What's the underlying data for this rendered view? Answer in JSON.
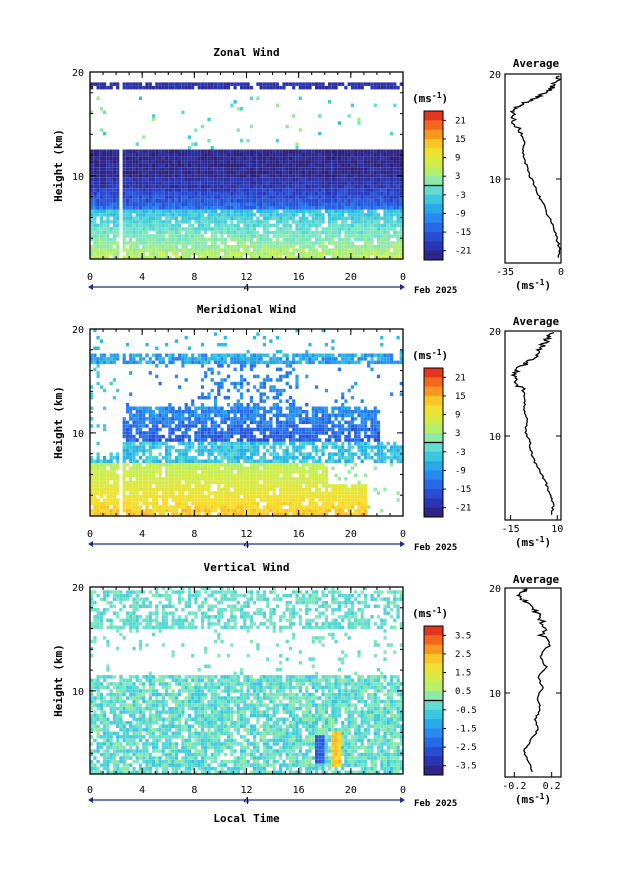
{
  "figure": {
    "xlabel": "Local Time",
    "date_label": "Feb 2025",
    "day_label": "4"
  },
  "chart_data": [
    {
      "type": "heatmap",
      "title": "Zonal Wind",
      "ylabel": "Height (km)",
      "unit_label": "(ms",
      "unit_sup": "-1",
      "x_ticks": [
        "0",
        "4",
        "8",
        "12",
        "16",
        "20",
        "0"
      ],
      "x_range": [
        0,
        24
      ],
      "y_ticks": [
        "20",
        "10"
      ],
      "y_range": [
        2,
        20
      ],
      "colorbar_ticks": [
        "21",
        "15",
        "9",
        "3",
        "-3",
        "-9",
        "-15",
        "-21"
      ],
      "colorbar_range": [
        -24,
        24
      ],
      "average": {
        "title": "Average",
        "x_ticks": [
          "-35",
          "0"
        ],
        "x_range": [
          -35,
          0
        ],
        "y_ticks": [
          "20",
          "10"
        ],
        "xlabel": "(ms",
        "xlabel_sup": "-1",
        "profile": [
          [
            -2,
            2.5
          ],
          [
            -1,
            3.5
          ],
          [
            -3,
            4.5
          ],
          [
            -5,
            5.5
          ],
          [
            -8,
            6.5
          ],
          [
            -11,
            7.5
          ],
          [
            -14,
            8.5
          ],
          [
            -17,
            9.5
          ],
          [
            -20,
            10.5
          ],
          [
            -22,
            11.5
          ],
          [
            -24,
            12.5
          ],
          [
            -23,
            13.5
          ],
          [
            -25,
            14.5
          ],
          [
            -28,
            15.0
          ],
          [
            -30,
            16.0
          ],
          [
            -31,
            16.5
          ],
          [
            -26,
            17.0
          ],
          [
            -20,
            17.5
          ],
          [
            -12,
            18.0
          ],
          [
            -6,
            18.6
          ],
          [
            -3,
            19.2
          ],
          [
            -1,
            19.8
          ]
        ]
      }
    },
    {
      "type": "heatmap",
      "title": "Meridional Wind",
      "ylabel": "Height (km)",
      "unit_label": "(ms",
      "unit_sup": "-1",
      "x_ticks": [
        "0",
        "4",
        "8",
        "12",
        "16",
        "20",
        "0"
      ],
      "x_range": [
        0,
        24
      ],
      "y_ticks": [
        "20",
        "10"
      ],
      "y_range": [
        2,
        20
      ],
      "colorbar_ticks": [
        "21",
        "15",
        "9",
        "3",
        "-3",
        "-9",
        "-15",
        "-21"
      ],
      "colorbar_range": [
        -24,
        24
      ],
      "average": {
        "title": "Average",
        "x_ticks": [
          "-15",
          "10"
        ],
        "x_range": [
          -18,
          12
        ],
        "y_ticks": [
          "20",
          "10"
        ],
        "xlabel": "(ms",
        "xlabel_sup": "-1",
        "profile": [
          [
            7,
            2.5
          ],
          [
            8,
            3.5
          ],
          [
            6,
            4.5
          ],
          [
            4,
            5.5
          ],
          [
            1,
            6.5
          ],
          [
            -2,
            7.5
          ],
          [
            -4,
            8.5
          ],
          [
            -5,
            9.5
          ],
          [
            -7,
            10.5
          ],
          [
            -6,
            11.5
          ],
          [
            -8,
            12.5
          ],
          [
            -7,
            13.5
          ],
          [
            -9,
            14.5
          ],
          [
            -12,
            15.0
          ],
          [
            -14,
            15.8
          ],
          [
            -10,
            16.5
          ],
          [
            -6,
            17.0
          ],
          [
            -2,
            17.6
          ],
          [
            0,
            18.2
          ],
          [
            3,
            18.8
          ],
          [
            5,
            19.4
          ],
          [
            8,
            19.9
          ]
        ]
      }
    },
    {
      "type": "heatmap",
      "title": "Vertical Wind",
      "ylabel": "Height (km)",
      "unit_label": "(ms",
      "unit_sup": "-1",
      "x_ticks": [
        "0",
        "4",
        "8",
        "12",
        "16",
        "20",
        "0"
      ],
      "x_range": [
        0,
        24
      ],
      "y_ticks": [
        "20",
        "10"
      ],
      "y_range": [
        2,
        20
      ],
      "colorbar_ticks": [
        "3.5",
        "2.5",
        "1.5",
        "0.5",
        "-0.5",
        "-1.5",
        "-2.5",
        "-3.5"
      ],
      "colorbar_range": [
        -4,
        4
      ],
      "average": {
        "title": "Average",
        "x_ticks": [
          "-0.2",
          "0.2"
        ],
        "x_range": [
          -0.3,
          0.3
        ],
        "y_ticks": [
          "20",
          "10"
        ],
        "xlabel": "(ms",
        "xlabel_sup": "-1",
        "profile": [
          [
            0.0,
            2.5
          ],
          [
            -0.05,
            3.5
          ],
          [
            -0.1,
            4.5
          ],
          [
            -0.02,
            5.5
          ],
          [
            0.05,
            6.5
          ],
          [
            0.02,
            7.5
          ],
          [
            0.08,
            8.5
          ],
          [
            0.04,
            9.5
          ],
          [
            0.1,
            10.5
          ],
          [
            0.06,
            11.5
          ],
          [
            0.14,
            12.5
          ],
          [
            0.08,
            13.5
          ],
          [
            0.16,
            14.5
          ],
          [
            0.1,
            15.5
          ],
          [
            0.12,
            16.5
          ],
          [
            0.06,
            17.5
          ],
          [
            -0.04,
            18.2
          ],
          [
            -0.1,
            18.8
          ],
          [
            -0.16,
            19.4
          ],
          [
            -0.06,
            19.9
          ]
        ]
      }
    }
  ]
}
